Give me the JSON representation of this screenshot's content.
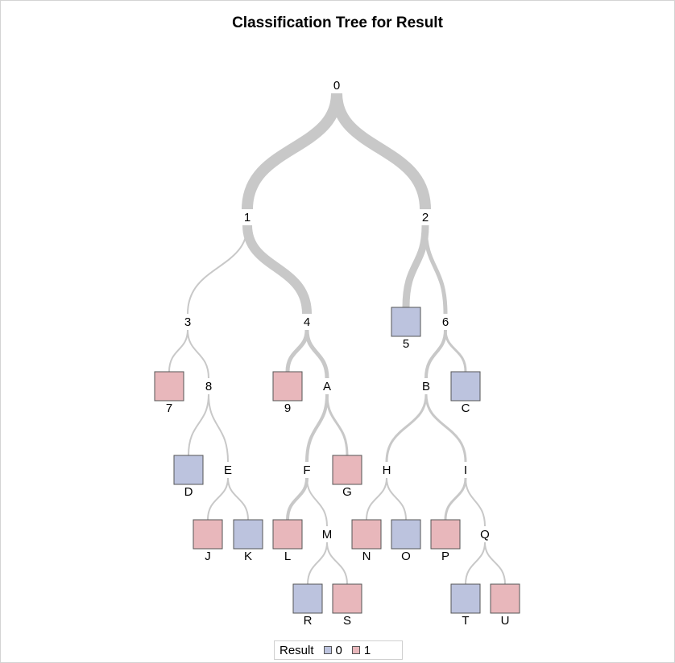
{
  "title": "Classification Tree for Result",
  "colors": {
    "class0": "#bcc3de",
    "class1": "#e8b7bb",
    "branch": "#c8c8c8",
    "leafBorder": "#555555"
  },
  "legend": {
    "title": "Result",
    "items": [
      {
        "label": "0",
        "color": "#bcc3de"
      },
      {
        "label": "1",
        "color": "#e8b7bb"
      }
    ]
  },
  "nodes": [
    {
      "id": "0",
      "type": "split"
    },
    {
      "id": "1",
      "type": "split",
      "parent": "0"
    },
    {
      "id": "2",
      "type": "split",
      "parent": "0"
    },
    {
      "id": "3",
      "type": "split",
      "parent": "1"
    },
    {
      "id": "4",
      "type": "split",
      "parent": "1"
    },
    {
      "id": "5",
      "type": "leaf",
      "parent": "2",
      "class": "0"
    },
    {
      "id": "6",
      "type": "split",
      "parent": "2"
    },
    {
      "id": "7",
      "type": "leaf",
      "parent": "3",
      "class": "1"
    },
    {
      "id": "8",
      "type": "split",
      "parent": "3"
    },
    {
      "id": "9",
      "type": "leaf",
      "parent": "4",
      "class": "1"
    },
    {
      "id": "A",
      "type": "split",
      "parent": "4"
    },
    {
      "id": "B",
      "type": "split",
      "parent": "6"
    },
    {
      "id": "C",
      "type": "leaf",
      "parent": "6",
      "class": "0"
    },
    {
      "id": "D",
      "type": "leaf",
      "parent": "8",
      "class": "0"
    },
    {
      "id": "E",
      "type": "split",
      "parent": "8"
    },
    {
      "id": "F",
      "type": "split",
      "parent": "A"
    },
    {
      "id": "G",
      "type": "leaf",
      "parent": "A",
      "class": "1"
    },
    {
      "id": "H",
      "type": "split",
      "parent": "B"
    },
    {
      "id": "I",
      "type": "split",
      "parent": "B"
    },
    {
      "id": "J",
      "type": "leaf",
      "parent": "E",
      "class": "1"
    },
    {
      "id": "K",
      "type": "leaf",
      "parent": "E",
      "class": "0"
    },
    {
      "id": "L",
      "type": "leaf",
      "parent": "F",
      "class": "1"
    },
    {
      "id": "M",
      "type": "split",
      "parent": "F"
    },
    {
      "id": "N",
      "type": "leaf",
      "parent": "H",
      "class": "1"
    },
    {
      "id": "O",
      "type": "leaf",
      "parent": "H",
      "class": "0"
    },
    {
      "id": "P",
      "type": "leaf",
      "parent": "I",
      "class": "1"
    },
    {
      "id": "Q",
      "type": "split",
      "parent": "I"
    },
    {
      "id": "R",
      "type": "leaf",
      "parent": "M",
      "class": "0"
    },
    {
      "id": "S",
      "type": "leaf",
      "parent": "M",
      "class": "1"
    },
    {
      "id": "T",
      "type": "leaf",
      "parent": "Q",
      "class": "0"
    },
    {
      "id": "U",
      "type": "leaf",
      "parent": "Q",
      "class": "1"
    }
  ]
}
